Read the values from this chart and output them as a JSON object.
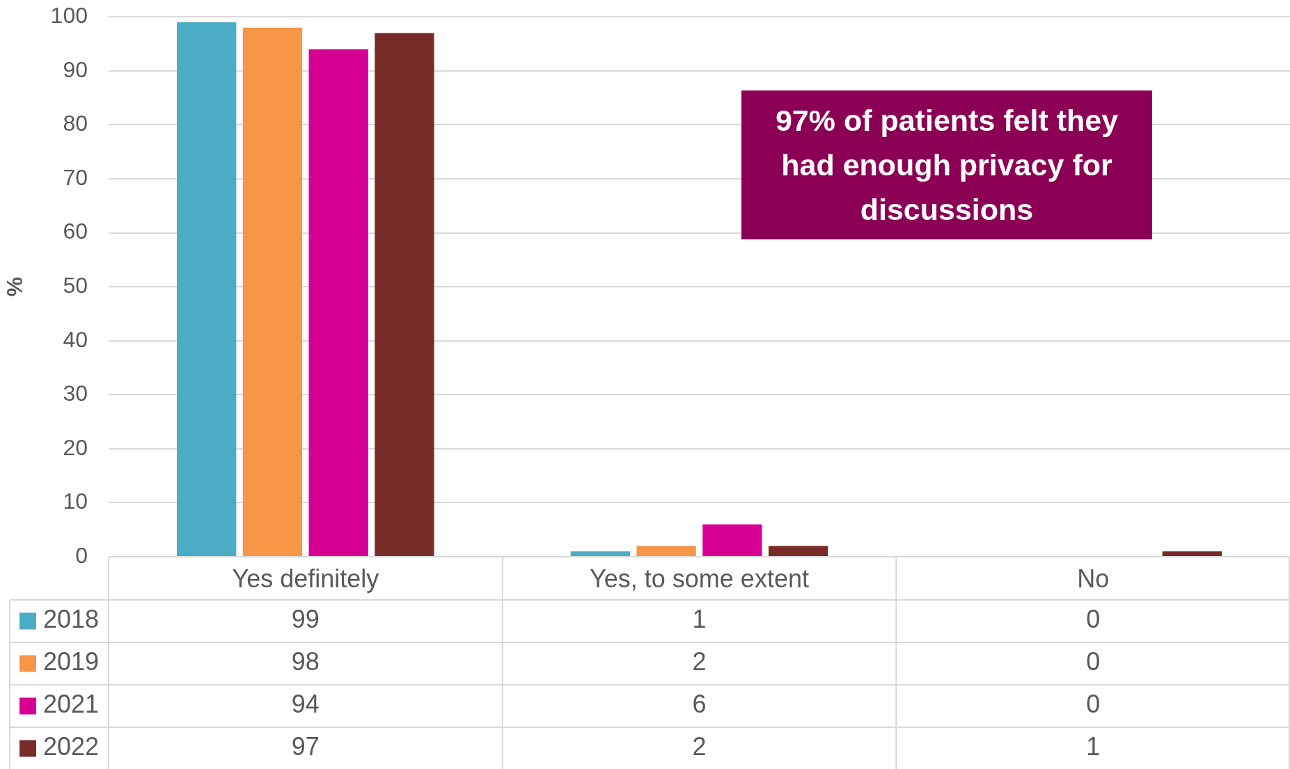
{
  "chart_data": {
    "type": "bar",
    "categories": [
      "Yes definitely",
      "Yes, to some extent",
      "No"
    ],
    "series": [
      {
        "name": "2018",
        "color": "#4bacc6",
        "values": [
          99,
          1,
          0
        ]
      },
      {
        "name": "2019",
        "color": "#f79646",
        "values": [
          98,
          2,
          0
        ]
      },
      {
        "name": "2021",
        "color": "#d60093",
        "values": [
          94,
          6,
          0
        ]
      },
      {
        "name": "2022",
        "color": "#772c2a",
        "values": [
          97,
          2,
          1
        ]
      }
    ],
    "ylabel": "%",
    "ylim": [
      0,
      100
    ],
    "yticks": [
      0,
      10,
      20,
      30,
      40,
      50,
      60,
      70,
      80,
      90,
      100
    ],
    "grid": "y",
    "legend": "bottom",
    "data_labels": true,
    "annotations": [
      "97% of patients felt they had enough privacy for discussions"
    ]
  }
}
